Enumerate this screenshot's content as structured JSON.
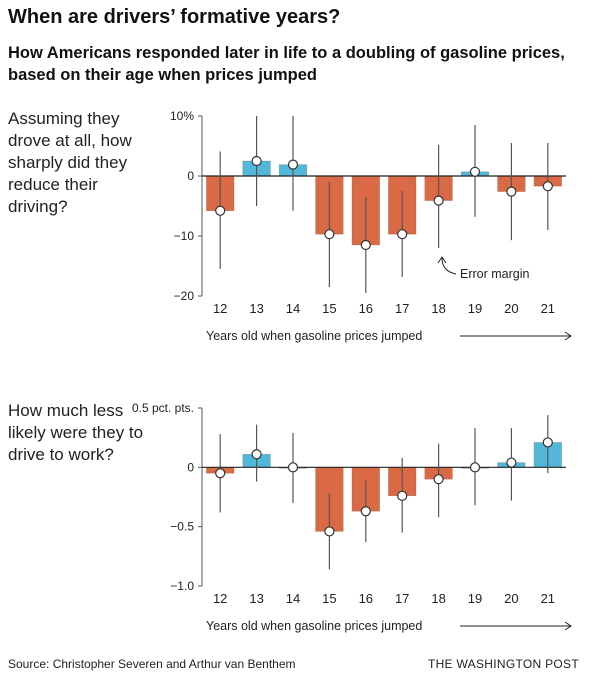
{
  "title": "When are drivers’ formative years?",
  "subtitle": "How Americans responded later in life to a doubling of gasoline prices, based on their age when prices jumped",
  "source": "Source: Christopher Severen and Arthur van Benthem",
  "brand": "THE WASHINGTON POST",
  "colors": {
    "negative": "#d96a45",
    "positive": "#53b7d9",
    "whisker": "#555555",
    "zero_line": "#222222"
  },
  "chart_data": [
    {
      "type": "bar",
      "question": "Assuming they drove at all, how sharply did they reduce their driving?",
      "categories": [
        "12",
        "13",
        "14",
        "15",
        "16",
        "17",
        "18",
        "19",
        "20",
        "21"
      ],
      "values": [
        -5.8,
        2.5,
        1.9,
        -9.7,
        -11.5,
        -9.7,
        -4.1,
        0.7,
        -2.6,
        -1.7
      ],
      "error_low": [
        -15.5,
        -5.0,
        -5.8,
        -18.5,
        -19.5,
        -16.8,
        -12.0,
        -6.8,
        -10.7,
        -9.0
      ],
      "error_high": [
        4.1,
        10.0,
        10.0,
        -1.0,
        -3.5,
        -2.5,
        5.2,
        8.5,
        5.5,
        5.5
      ],
      "ylim": [
        -20,
        10
      ],
      "yticks": [
        10,
        0,
        -10,
        -20
      ],
      "ytick_labels": [
        "10%",
        "0",
        "−10",
        "−20"
      ],
      "xlabel": "Years old when gasoline prices jumped",
      "annotation": "Error margin"
    },
    {
      "type": "bar",
      "question": "How much less likely were they to drive to work?",
      "categories": [
        "12",
        "13",
        "14",
        "15",
        "16",
        "17",
        "18",
        "19",
        "20",
        "21"
      ],
      "values": [
        -0.05,
        0.11,
        0.0,
        -0.54,
        -0.37,
        -0.24,
        -0.1,
        0.0,
        0.04,
        0.21
      ],
      "error_low": [
        -0.38,
        -0.12,
        -0.3,
        -0.86,
        -0.63,
        -0.55,
        -0.42,
        -0.32,
        -0.28,
        -0.05
      ],
      "error_high": [
        0.28,
        0.36,
        0.29,
        -0.22,
        -0.11,
        0.08,
        0.2,
        0.33,
        0.33,
        0.44
      ],
      "ylim": [
        -1.0,
        0.5
      ],
      "yticks": [
        0.5,
        0,
        -0.5,
        -1.0
      ],
      "ytick_labels": [
        "0.5 pct. pts.",
        "0",
        "−0.5",
        "−1.0"
      ],
      "xlabel": "Years old when gasoline prices jumped"
    }
  ]
}
